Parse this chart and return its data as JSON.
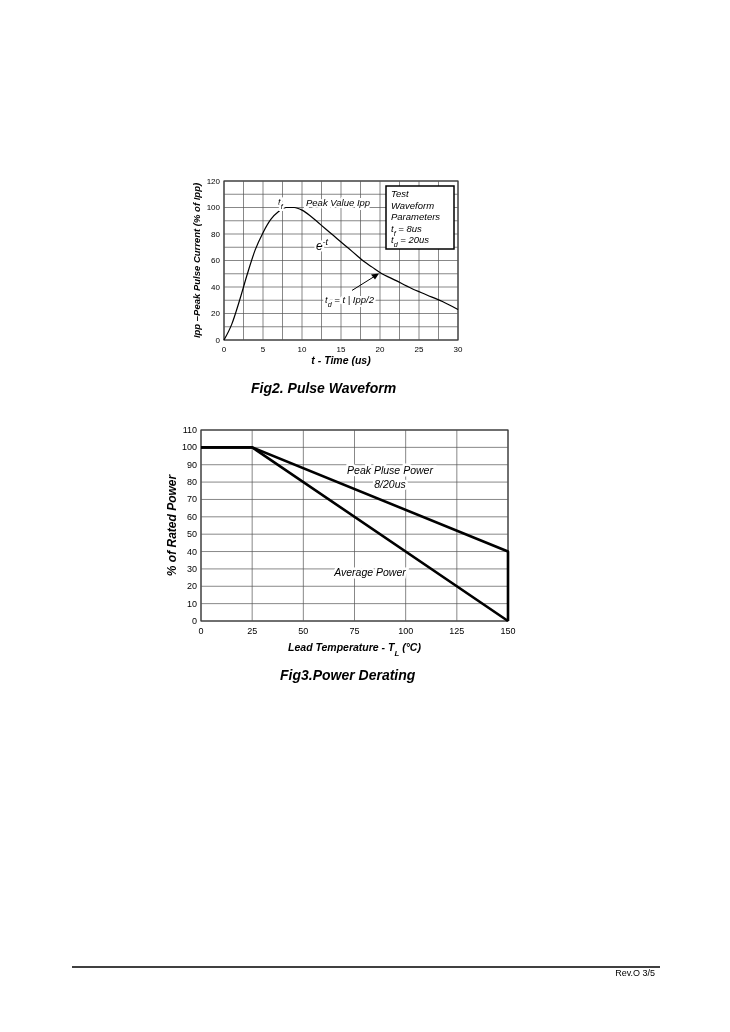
{
  "chart_data": [
    {
      "type": "line",
      "title": "Fig2. Pulse Waveform",
      "xlabel": "t - Time (us)",
      "ylabel": "Ipp –Peak Pulse Current (% of Ipp)",
      "xlim": [
        0,
        30
      ],
      "ylim": [
        0,
        120
      ],
      "xticks": [
        0,
        {
          "value": 2.5,
          "label": null
        },
        5,
        {
          "value": 7.5,
          "label": null
        },
        10,
        {
          "value": 12.5,
          "label": null
        },
        15,
        {
          "value": 17.5,
          "label": null
        },
        20,
        {
          "value": 22.5,
          "label": null
        },
        25,
        {
          "value": 27.5,
          "label": null
        },
        30
      ],
      "yticks": [
        0,
        {
          "value": 10,
          "label": null
        },
        20,
        {
          "value": 30,
          "label": null
        },
        40,
        {
          "value": 50,
          "label": null
        },
        60,
        {
          "value": 70,
          "label": null
        },
        80,
        {
          "value": 90,
          "label": null
        },
        100,
        {
          "value": 110,
          "label": null
        },
        120
      ],
      "grid": true,
      "series": [
        {
          "color": "#000000",
          "x": [
            0,
            1,
            2,
            3,
            4,
            5,
            6,
            7,
            8,
            9,
            10,
            11,
            12,
            13,
            14,
            15,
            16,
            17,
            18,
            19,
            20,
            22,
            24,
            26,
            28,
            30
          ],
          "values": [
            0,
            12,
            30,
            50,
            68,
            81,
            91,
            97,
            100,
            100,
            98,
            94,
            89,
            84,
            79,
            74,
            69,
            64,
            59,
            55,
            51,
            45,
            39,
            34,
            29,
            23
          ]
        }
      ],
      "annotations": [
        "t$_{f}$",
        "Peak Value Ipp",
        "e$^{-t}$",
        {
          "text": "t$_{d}$ = t | Ipp/2",
          "x": 20,
          "y": 51
        },
        "Test\nWaveform\nParameters\nt$_{f}$ = 8us\nt$_{d}$ = 20us"
      ]
    },
    {
      "type": "line",
      "title": "Fig3.Power Derating",
      "xlabel": "Lead  Temperature - T$_{L}$  (°C)",
      "ylabel": "% of Rated Power",
      "xlim": [
        0,
        150
      ],
      "ylim": [
        0,
        110
      ],
      "xticks": [
        0,
        25,
        50,
        75,
        100,
        125,
        150
      ],
      "yticks": [
        0,
        10,
        20,
        30,
        40,
        50,
        60,
        70,
        80,
        90,
        100,
        110
      ],
      "grid": true,
      "series": [
        {
          "name": "Peak Pluse Power\n8/20us",
          "color": "#000000",
          "x": [
            0,
            25,
            150,
            150
          ],
          "values": [
            100,
            100,
            40,
            0
          ]
        },
        {
          "name": "Average Power",
          "color": "#000000",
          "x": [
            0,
            25,
            150
          ],
          "values": [
            100,
            100,
            0
          ]
        }
      ],
      "annotations": [
        "Rev.O  3/5"
      ]
    }
  ]
}
